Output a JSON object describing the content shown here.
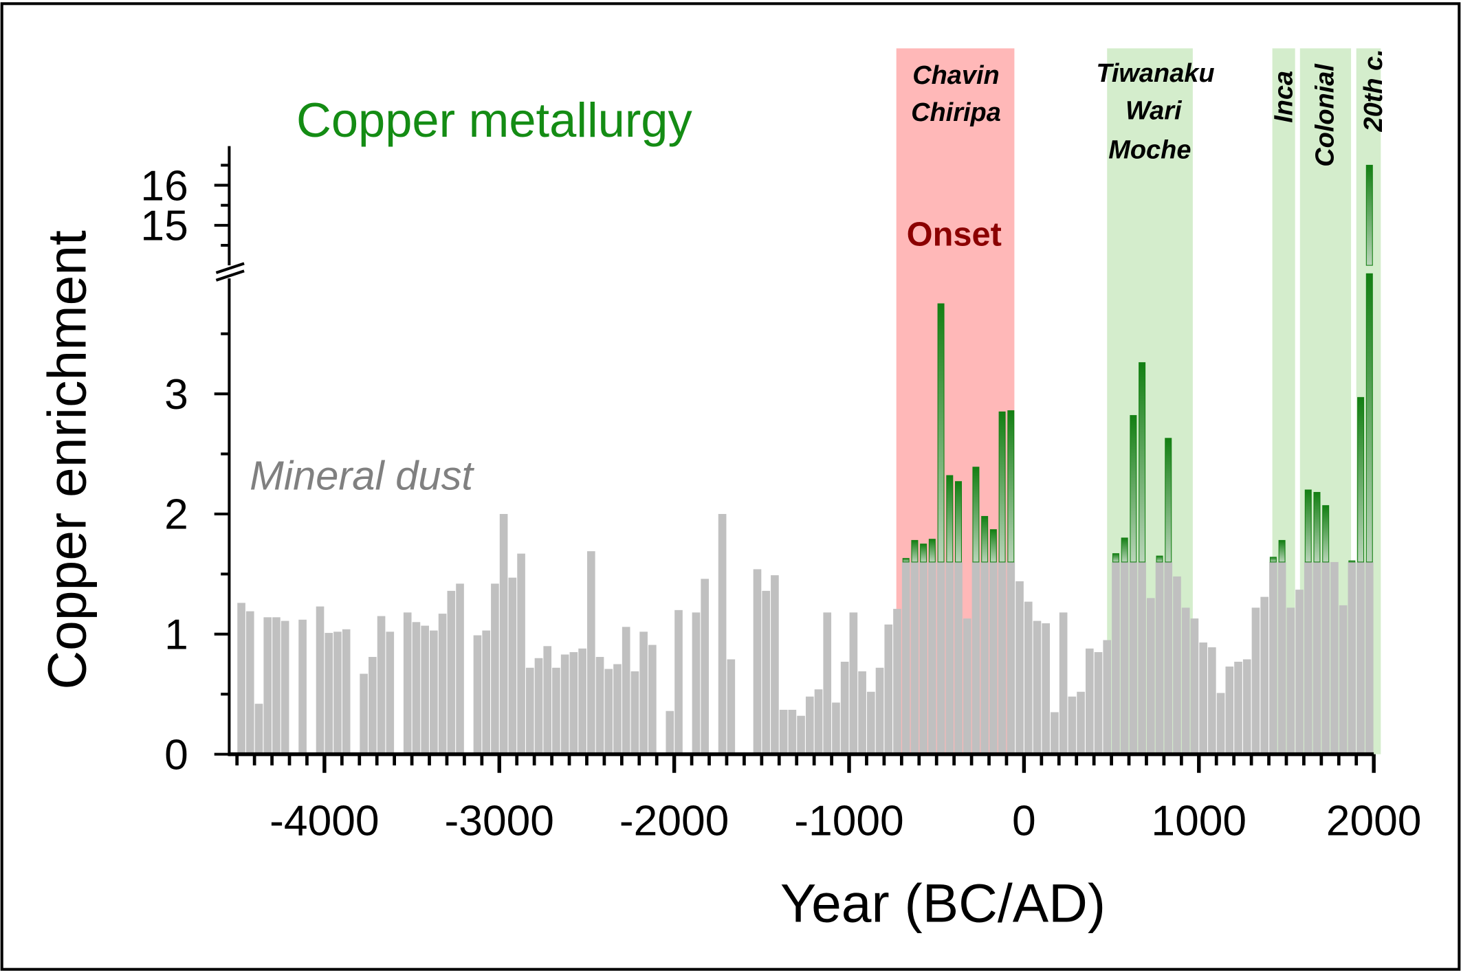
{
  "chart_data": {
    "type": "bar",
    "title": "Copper metallurgy",
    "xlabel": "Year (BC/AD)",
    "ylabel": "Copper enrichment",
    "xlim": [
      -4500,
      2000
    ],
    "ylim_lower": [
      0,
      4
    ],
    "ylim_upper": [
      14,
      17
    ],
    "y_axis_break": true,
    "grid": false,
    "x_ticks": [
      -4000,
      -3000,
      -2000,
      -1000,
      0,
      1000,
      2000
    ],
    "x_tick_labels": [
      "-4000",
      "-3000",
      "-2000",
      "-1000",
      "0",
      "1000",
      "2000"
    ],
    "y_ticks": [
      0,
      1,
      2,
      3,
      15,
      16
    ],
    "y_tick_labels": [
      "0",
      "1",
      "2",
      "3",
      "15",
      "16"
    ],
    "x": [
      -4500,
      -4450,
      -4400,
      -4350,
      -4300,
      -4250,
      -4200,
      -4150,
      -4100,
      -4050,
      -4000,
      -3950,
      -3900,
      -3850,
      -3800,
      -3750,
      -3700,
      -3650,
      -3600,
      -3550,
      -3500,
      -3450,
      -3400,
      -3350,
      -3300,
      -3250,
      -3200,
      -3150,
      -3100,
      -3050,
      -3000,
      -2950,
      -2900,
      -2850,
      -2800,
      -2750,
      -2700,
      -2650,
      -2600,
      -2550,
      -2500,
      -2450,
      -2400,
      -2350,
      -2300,
      -2250,
      -2200,
      -2150,
      -2100,
      -2050,
      -2000,
      -1950,
      -1900,
      -1850,
      -1800,
      -1750,
      -1700,
      -1650,
      -1600,
      -1550,
      -1500,
      -1450,
      -1400,
      -1350,
      -1300,
      -1250,
      -1200,
      -1150,
      -1100,
      -1050,
      -1000,
      -950,
      -900,
      -850,
      -800,
      -750,
      -700,
      -650,
      -600,
      -550,
      -500,
      -450,
      -400,
      -350,
      -300,
      -250,
      -200,
      -150,
      -100,
      -50,
      0,
      50,
      100,
      150,
      200,
      250,
      300,
      350,
      400,
      450,
      500,
      550,
      600,
      650,
      700,
      750,
      800,
      850,
      900,
      950,
      1000,
      1050,
      1100,
      1150,
      1200,
      1250,
      1300,
      1350,
      1400,
      1450,
      1500,
      1550,
      1600,
      1650,
      1700,
      1750,
      1800,
      1850,
      1900,
      1950
    ],
    "bin_width_years": 50,
    "series": [
      {
        "name": "Mineral dust",
        "color": "#c0c0c0",
        "values": [
          1.26,
          1.19,
          0.42,
          1.14,
          1.14,
          1.11,
          0,
          1.12,
          0,
          1.23,
          1.01,
          1.02,
          1.04,
          0,
          0.67,
          0.81,
          1.15,
          1.02,
          0,
          1.18,
          1.1,
          1.07,
          1.03,
          1.17,
          1.36,
          1.42,
          0,
          0.99,
          1.03,
          1.42,
          2.0,
          1.47,
          1.67,
          0.72,
          0.8,
          0.9,
          0.72,
          0.83,
          0.85,
          0.88,
          1.69,
          0.81,
          0.71,
          0.75,
          1.06,
          0.69,
          1.02,
          0.91,
          0,
          0.36,
          1.2,
          0,
          1.18,
          1.46,
          0,
          2.0,
          0.79,
          0,
          0,
          1.54,
          1.36,
          1.49,
          0.37,
          0.37,
          0.32,
          0.48,
          0.54,
          1.18,
          0.43,
          0.77,
          1.18,
          0.69,
          0.52,
          0.72,
          1.08,
          1.21,
          1.6,
          1.6,
          1.6,
          1.6,
          1.6,
          1.6,
          1.6,
          1.13,
          1.6,
          1.6,
          1.6,
          1.6,
          1.6,
          1.44,
          1.27,
          1.11,
          1.09,
          0.35,
          1.18,
          0.48,
          0.52,
          0.88,
          0.85,
          0.95,
          1.6,
          1.6,
          1.6,
          1.6,
          1.3,
          1.6,
          1.6,
          1.48,
          1.22,
          1.13,
          0.93,
          0.89,
          0.51,
          0.73,
          0.77,
          0.79,
          1.22,
          1.31,
          1.6,
          1.6,
          1.22,
          1.37,
          1.6,
          1.6,
          1.6,
          1.6,
          1.24,
          1.6,
          1.6,
          1.6
        ]
      },
      {
        "name": "Copper metallurgy",
        "color": "#1a801a",
        "values": [
          null,
          null,
          null,
          null,
          null,
          null,
          null,
          null,
          null,
          null,
          null,
          null,
          null,
          null,
          null,
          null,
          null,
          null,
          null,
          null,
          null,
          null,
          null,
          null,
          null,
          null,
          null,
          null,
          null,
          null,
          null,
          null,
          null,
          null,
          null,
          null,
          null,
          null,
          null,
          null,
          null,
          null,
          null,
          null,
          null,
          null,
          null,
          null,
          null,
          null,
          null,
          null,
          null,
          null,
          null,
          null,
          null,
          null,
          null,
          null,
          null,
          null,
          null,
          null,
          null,
          null,
          null,
          null,
          null,
          null,
          null,
          null,
          null,
          null,
          null,
          null,
          1.63,
          1.78,
          1.75,
          1.79,
          3.75,
          2.32,
          2.27,
          null,
          2.39,
          1.98,
          1.87,
          2.85,
          2.86,
          null,
          null,
          null,
          null,
          null,
          null,
          null,
          null,
          null,
          null,
          null,
          1.67,
          1.8,
          2.82,
          3.26,
          null,
          1.65,
          2.63,
          null,
          null,
          null,
          null,
          null,
          null,
          null,
          null,
          null,
          null,
          null,
          1.64,
          1.78,
          null,
          null,
          2.2,
          2.18,
          2.07,
          null,
          null,
          1.61,
          2.97,
          16.5
        ]
      }
    ],
    "periods": [
      {
        "labels": [
          "Chavin",
          "Chiripa"
        ],
        "start": -730,
        "end": -55,
        "color": "#ffb8b8",
        "note": "Onset",
        "note_color": "#8b0000"
      },
      {
        "labels": [
          "Tiwanaku",
          "Wari",
          "Moche"
        ],
        "start": 475,
        "end": 965,
        "color": "#d4edcc"
      },
      {
        "labels": [
          "Inca"
        ],
        "start": 1420,
        "end": 1550,
        "color": "#d4edcc"
      },
      {
        "labels": [
          "Colonial"
        ],
        "start": 1578,
        "end": 1870,
        "color": "#d4edcc"
      },
      {
        "labels": [
          "20th c."
        ],
        "start": 1900,
        "end": 2040,
        "color": "#d4edcc"
      }
    ]
  }
}
